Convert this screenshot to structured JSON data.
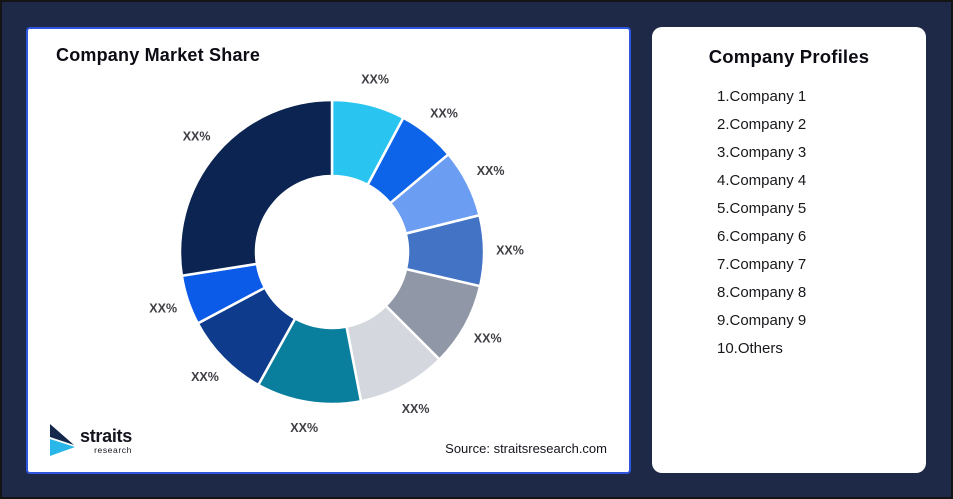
{
  "frame": {
    "background": "#1D2946",
    "outer_border": "#141414"
  },
  "left_panel": {
    "title": "Company Market Share",
    "source_text": "Source: straitsresearch.com",
    "border_color": "#2F55DF",
    "logo": {
      "brand": "straits",
      "sub": "research",
      "icon_dark": "#14284B",
      "icon_cyan": "#29B7E9"
    }
  },
  "right_panel": {
    "title": "Company Profiles",
    "items": [
      "1.Company 1",
      "2.Company 2",
      "3.Company 3",
      "4.Company 4",
      "5.Company 5",
      "6.Company 6",
      "7.Company 7",
      "8.Company 8",
      "9.Company 9",
      "10.Others"
    ]
  },
  "chart_data": {
    "type": "pie",
    "subtype": "donut",
    "title": "Company Market Share",
    "start_angle_deg": 0,
    "direction": "clockwise",
    "inner_radius_ratio": 0.5,
    "legend_position": "none",
    "note": "all slice values masked as XX% in source image; shares estimated from arc angles",
    "segments": [
      {
        "label": "XX%",
        "angle_deg": 28,
        "share_pct_est": 7.8,
        "color": "#29C5F0"
      },
      {
        "label": "XX%",
        "angle_deg": 22,
        "share_pct_est": 6.1,
        "color": "#0D64E8"
      },
      {
        "label": "XX%",
        "angle_deg": 26,
        "share_pct_est": 7.2,
        "color": "#6B9DF2"
      },
      {
        "label": "XX%",
        "angle_deg": 27,
        "share_pct_est": 7.5,
        "color": "#4273C4"
      },
      {
        "label": "XX%",
        "angle_deg": 32,
        "share_pct_est": 8.9,
        "color": "#9097A6"
      },
      {
        "label": "XX%",
        "angle_deg": 34,
        "share_pct_est": 9.4,
        "color": "#D4D7DD"
      },
      {
        "label": "XX%",
        "angle_deg": 40,
        "share_pct_est": 11.1,
        "color": "#0A7F9D"
      },
      {
        "label": "XX%",
        "angle_deg": 33,
        "share_pct_est": 9.2,
        "color": "#0E3B8C"
      },
      {
        "label": "XX%",
        "angle_deg": 19,
        "share_pct_est": 5.3,
        "color": "#0C5AE8"
      },
      {
        "label": "XX%",
        "angle_deg": 99,
        "share_pct_est": 27.5,
        "color": "#0B2451"
      }
    ]
  }
}
